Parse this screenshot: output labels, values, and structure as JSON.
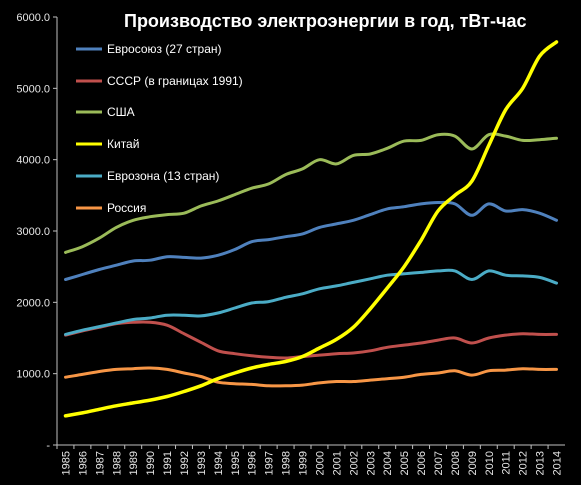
{
  "chart_data": {
    "type": "line",
    "title": "Производство электроэнергии в год, тВт-час",
    "xlabel": "",
    "ylabel": "",
    "ylim": [
      0,
      6000
    ],
    "y_ticks": [
      "-",
      "1000.0",
      "2000.0",
      "3000.0",
      "4000.0",
      "5000.0",
      "6000.0"
    ],
    "grid": false,
    "legend_position": "top-left",
    "x": [
      "1985",
      "1986",
      "1987",
      "1988",
      "1989",
      "1990",
      "1991",
      "1992",
      "1993",
      "1994",
      "1995",
      "1996",
      "1997",
      "1998",
      "1999",
      "2000",
      "2001",
      "2002",
      "2003",
      "2004",
      "2005",
      "2006",
      "2007",
      "2008",
      "2009",
      "2010",
      "2011",
      "2012",
      "2013",
      "2014"
    ],
    "series": [
      {
        "name": "Евросоюз (27 стран)",
        "color": "#4f81bd",
        "values": [
          2320,
          2390,
          2460,
          2520,
          2580,
          2590,
          2640,
          2630,
          2620,
          2660,
          2740,
          2850,
          2880,
          2920,
          2960,
          3050,
          3100,
          3150,
          3230,
          3310,
          3340,
          3380,
          3400,
          3380,
          3220,
          3380,
          3280,
          3300,
          3250,
          3150
        ]
      },
      {
        "name": "СССР (в границах 1991)",
        "color": "#c0504d",
        "values": [
          1540,
          1600,
          1650,
          1700,
          1720,
          1720,
          1680,
          1560,
          1440,
          1320,
          1280,
          1250,
          1230,
          1220,
          1240,
          1260,
          1280,
          1290,
          1320,
          1370,
          1400,
          1430,
          1470,
          1500,
          1430,
          1500,
          1540,
          1560,
          1550,
          1550
        ]
      },
      {
        "name": "США",
        "color": "#9bbb59",
        "values": [
          2700,
          2780,
          2900,
          3050,
          3150,
          3200,
          3230,
          3250,
          3350,
          3420,
          3510,
          3600,
          3660,
          3790,
          3870,
          4000,
          3940,
          4060,
          4080,
          4160,
          4260,
          4270,
          4350,
          4330,
          4150,
          4350,
          4330,
          4270,
          4280,
          4300
        ]
      },
      {
        "name": "Китай",
        "color": "#ffff00",
        "values": [
          410,
          450,
          500,
          550,
          590,
          630,
          680,
          750,
          830,
          930,
          1010,
          1080,
          1130,
          1170,
          1240,
          1360,
          1480,
          1650,
          1910,
          2200,
          2500,
          2870,
          3280,
          3500,
          3700,
          4200,
          4700,
          5000,
          5450,
          5650
        ]
      },
      {
        "name": "Еврозона (13 стран)",
        "color": "#4bacc6",
        "values": [
          1550,
          1610,
          1660,
          1710,
          1760,
          1780,
          1820,
          1820,
          1810,
          1850,
          1920,
          1990,
          2010,
          2070,
          2120,
          2190,
          2230,
          2280,
          2330,
          2380,
          2400,
          2420,
          2440,
          2440,
          2320,
          2440,
          2380,
          2370,
          2350,
          2270
        ]
      },
      {
        "name": "Россия",
        "color": "#f79646",
        "values": [
          950,
          990,
          1030,
          1060,
          1070,
          1080,
          1060,
          1010,
          960,
          880,
          860,
          850,
          830,
          830,
          840,
          870,
          890,
          890,
          910,
          930,
          950,
          990,
          1010,
          1040,
          980,
          1040,
          1050,
          1070,
          1060,
          1060
        ]
      }
    ]
  }
}
